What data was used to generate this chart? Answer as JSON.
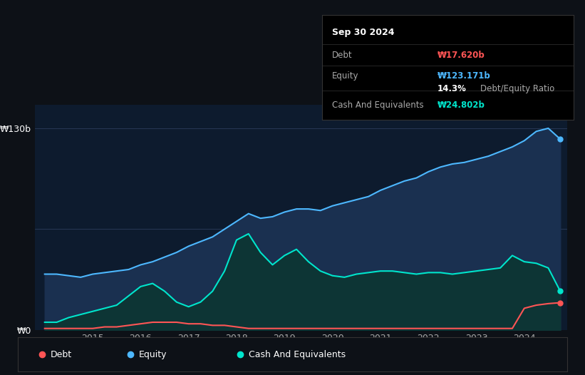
{
  "background_color": "#0d1117",
  "plot_bg_color": "#0d1b2e",
  "ylabel_130": "₩130b",
  "ylabel_0": "₩0",
  "tooltip": {
    "date": "Sep 30 2024",
    "debt_label": "Debt",
    "debt_value": "₩17.620b",
    "equity_label": "Equity",
    "equity_value": "₩123.171b",
    "ratio_value": "14.3%",
    "ratio_label": "Debt/Equity Ratio",
    "cash_label": "Cash And Equivalents",
    "cash_value": "₩24.802b"
  },
  "legend": [
    {
      "label": "Debt",
      "color": "#ff5555"
    },
    {
      "label": "Equity",
      "color": "#4db8ff"
    },
    {
      "label": "Cash And Equivalents",
      "color": "#00e5cc"
    }
  ],
  "equity_color": "#4db8ff",
  "debt_color": "#ff5555",
  "cash_color": "#00e5cc",
  "ylim": [
    0,
    145
  ],
  "equity_data": {
    "x": [
      2014.0,
      2014.25,
      2014.5,
      2014.75,
      2015.0,
      2015.25,
      2015.5,
      2015.75,
      2016.0,
      2016.25,
      2016.5,
      2016.75,
      2017.0,
      2017.25,
      2017.5,
      2017.75,
      2018.0,
      2018.25,
      2018.5,
      2018.75,
      2019.0,
      2019.25,
      2019.5,
      2019.75,
      2020.0,
      2020.25,
      2020.5,
      2020.75,
      2021.0,
      2021.25,
      2021.5,
      2021.75,
      2022.0,
      2022.25,
      2022.5,
      2022.75,
      2023.0,
      2023.25,
      2023.5,
      2023.75,
      2024.0,
      2024.25,
      2024.5,
      2024.75
    ],
    "y": [
      36,
      36,
      35,
      34,
      36,
      37,
      38,
      39,
      42,
      44,
      47,
      50,
      54,
      57,
      60,
      65,
      70,
      75,
      72,
      73,
      76,
      78,
      78,
      77,
      80,
      82,
      84,
      86,
      90,
      93,
      96,
      98,
      102,
      105,
      107,
      108,
      110,
      112,
      115,
      118,
      122,
      128,
      130,
      123
    ]
  },
  "cash_data": {
    "x": [
      2014.0,
      2014.25,
      2014.5,
      2014.75,
      2015.0,
      2015.25,
      2015.5,
      2015.75,
      2016.0,
      2016.25,
      2016.5,
      2016.75,
      2017.0,
      2017.25,
      2017.5,
      2017.75,
      2018.0,
      2018.25,
      2018.5,
      2018.75,
      2019.0,
      2019.25,
      2019.5,
      2019.75,
      2020.0,
      2020.25,
      2020.5,
      2020.75,
      2021.0,
      2021.25,
      2021.5,
      2021.75,
      2022.0,
      2022.25,
      2022.5,
      2022.75,
      2023.0,
      2023.25,
      2023.5,
      2023.75,
      2024.0,
      2024.25,
      2024.5,
      2024.75
    ],
    "y": [
      5,
      5,
      8,
      10,
      12,
      14,
      16,
      22,
      28,
      30,
      25,
      18,
      15,
      18,
      25,
      38,
      58,
      62,
      50,
      42,
      48,
      52,
      44,
      38,
      35,
      34,
      36,
      37,
      38,
      38,
      37,
      36,
      37,
      37,
      36,
      37,
      38,
      39,
      40,
      48,
      44,
      43,
      40,
      25
    ]
  },
  "debt_data": {
    "x": [
      2014.0,
      2014.25,
      2014.5,
      2014.75,
      2015.0,
      2015.25,
      2015.5,
      2015.75,
      2016.0,
      2016.25,
      2016.5,
      2016.75,
      2017.0,
      2017.25,
      2017.5,
      2017.75,
      2018.0,
      2018.25,
      2018.5,
      2018.75,
      2019.0,
      2019.25,
      2019.5,
      2019.75,
      2020.0,
      2020.25,
      2020.5,
      2020.75,
      2021.0,
      2021.25,
      2021.5,
      2021.75,
      2022.0,
      2022.25,
      2022.5,
      2022.75,
      2023.0,
      2023.25,
      2023.5,
      2023.75,
      2024.0,
      2024.25,
      2024.5,
      2024.75
    ],
    "y": [
      1,
      1,
      1,
      1,
      1,
      2,
      2,
      3,
      4,
      5,
      5,
      5,
      4,
      4,
      3,
      3,
      2,
      1,
      1,
      1,
      1,
      1,
      1,
      1,
      1,
      1,
      1,
      1,
      1,
      1,
      1,
      1,
      1,
      1,
      1,
      1,
      1,
      1,
      1,
      1,
      14,
      16,
      17,
      17.6
    ]
  }
}
